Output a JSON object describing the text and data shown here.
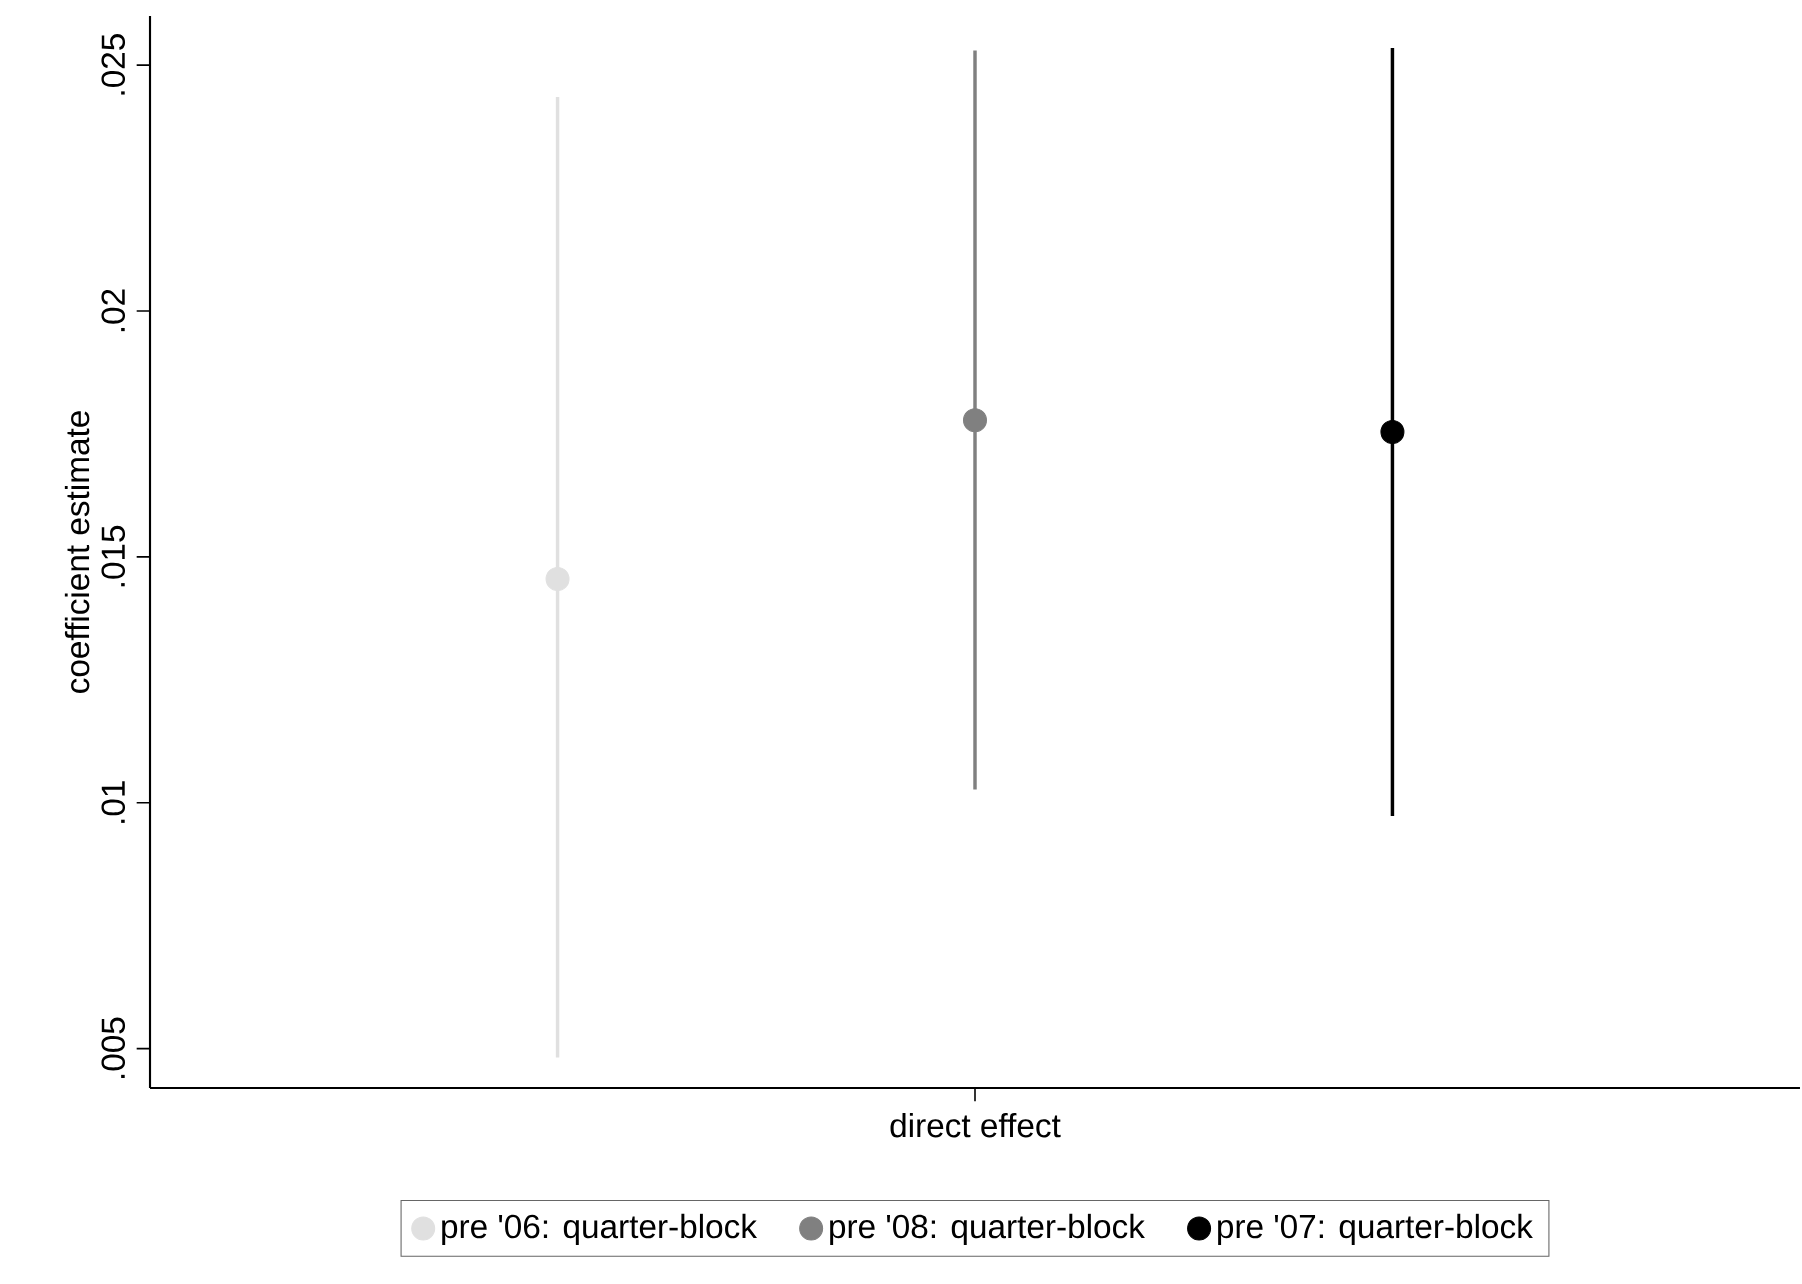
{
  "chart_data": {
    "type": "scatter",
    "ylabel": "coefficient estimate",
    "categories": [
      "direct effect"
    ],
    "series": [
      {
        "name": "pre '06: quarter-block",
        "color": "#e0e0e0",
        "values": [
          0.01455
        ],
        "errors": [
          [
            0.00482,
            0.02435
          ]
        ]
      },
      {
        "name": "pre '08: quarter-block",
        "color": "#808080",
        "values": [
          0.01778
        ],
        "errors": [
          [
            0.01027,
            0.0253
          ]
        ]
      },
      {
        "name": "pre '07: quarter-block",
        "color": "#000000",
        "values": [
          0.01754
        ],
        "errors": [
          [
            0.00973,
            0.02535
          ]
        ]
      }
    ],
    "ylim": [
      0.0042,
      0.026
    ],
    "yticks": [
      {
        "value": 0.005,
        "label": ".005"
      },
      {
        "value": 0.01,
        "label": ".01"
      },
      {
        "value": 0.015,
        "label": ".015"
      },
      {
        "value": 0.02,
        "label": ".02"
      },
      {
        "value": 0.025,
        "label": ".025"
      }
    ],
    "grid": false,
    "legend": "bottom",
    "marker": "circle"
  }
}
